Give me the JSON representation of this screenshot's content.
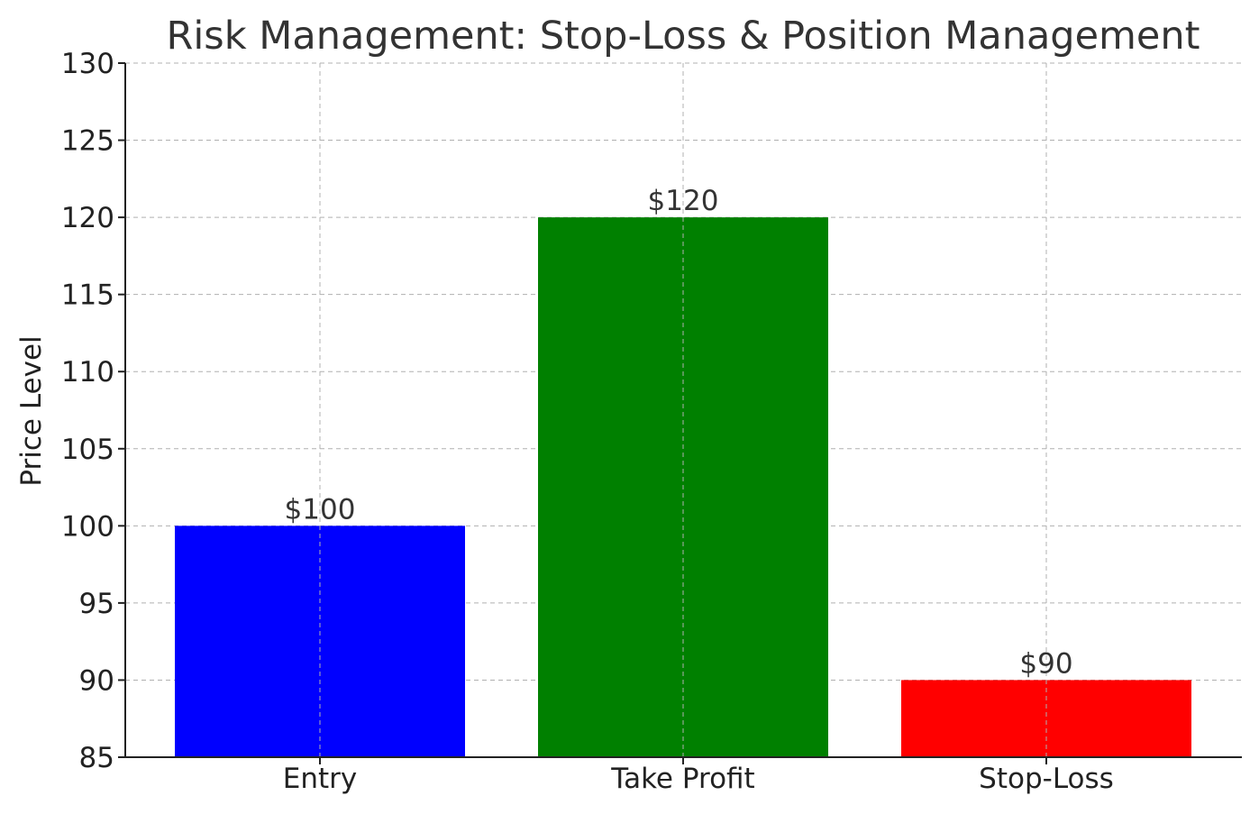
{
  "chart_data": {
    "type": "bar",
    "title": "Risk Management: Stop-Loss & Position Management",
    "xlabel": "",
    "ylabel": "Price Level",
    "categories": [
      "Entry",
      "Take Profit",
      "Stop-Loss"
    ],
    "values": [
      100,
      120,
      90
    ],
    "data_labels": [
      "$100",
      "$120",
      "$90"
    ],
    "colors": [
      "#0000ff",
      "#008000",
      "#ff0000"
    ],
    "ylim": [
      85,
      130
    ],
    "yticks": [
      85,
      90,
      95,
      100,
      105,
      110,
      115,
      120,
      125,
      130
    ],
    "ytick_labels": [
      "85",
      "90",
      "95",
      "100",
      "105",
      "110",
      "115",
      "120",
      "125",
      "130"
    ],
    "grid": true,
    "legend": "none"
  }
}
